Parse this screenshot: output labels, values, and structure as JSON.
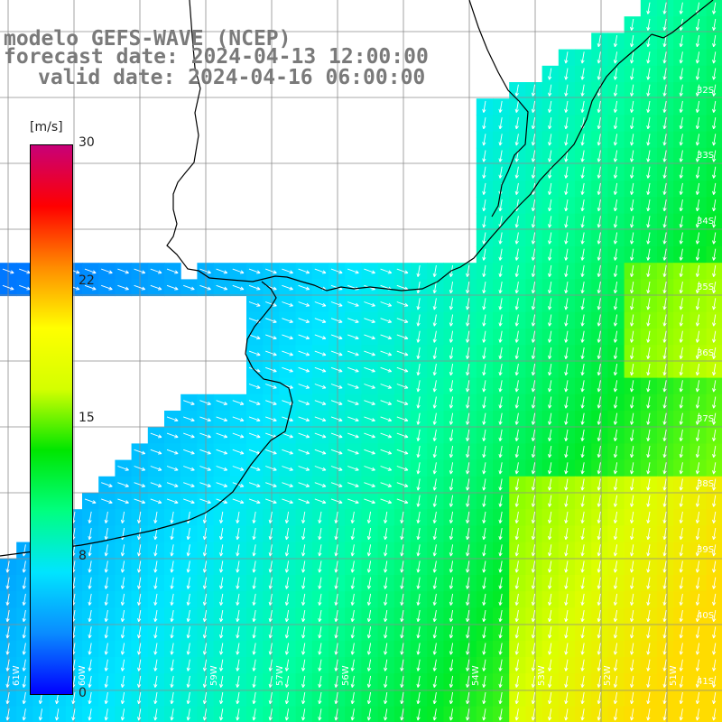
{
  "title": {
    "line1": "modelo GEFS-WAVE (NCEP)",
    "line2": "forecast date: 2024-04-13 12:00:00",
    "line3": "valid date: 2024-04-16 06:00:00"
  },
  "colorbar": {
    "unit": "[m/s]",
    "ticks": [
      "30",
      "22",
      "15",
      "8",
      "0"
    ],
    "tick_values": [
      30,
      22,
      15,
      8,
      0
    ],
    "min": 0,
    "max": 30,
    "colors": [
      "#0000ff",
      "#0a8cff",
      "#00e5ff",
      "#00ff80",
      "#00e600",
      "#d4ff00",
      "#ffff00",
      "#ff8c00",
      "#ff0000",
      "#c80078"
    ]
  },
  "lat_labels": [
    "32S",
    "33S",
    "34S",
    "35S",
    "36S",
    "37S",
    "38S",
    "39S",
    "40S",
    "41S"
  ],
  "lon_labels": [
    "61W",
    "60W",
    "59W",
    "57W",
    "56W",
    "54W",
    "53W",
    "52W",
    "51W"
  ],
  "colors": {
    "land": "#ffffff",
    "grid": "#8c8c8c",
    "coast": "#000000",
    "arrow": "#ffffff",
    "title": "#7a7a7a"
  }
}
